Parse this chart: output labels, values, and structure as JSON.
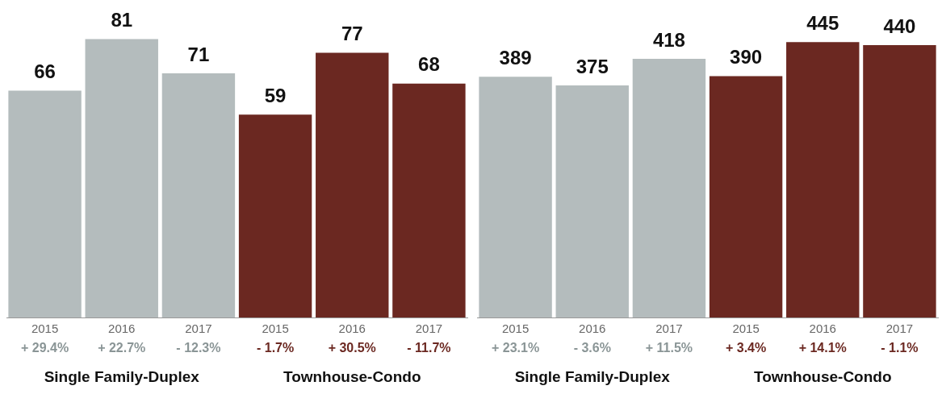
{
  "chart_data": [
    {
      "type": "bar",
      "categories": [
        "2015",
        "2016",
        "2017",
        "2015",
        "2016",
        "2017"
      ],
      "values": [
        66,
        81,
        71,
        59,
        77,
        68
      ],
      "colors": [
        "#b4bcbd",
        "#b4bcbd",
        "#b4bcbd",
        "#6b2821",
        "#6b2821",
        "#6b2821"
      ],
      "annotations": [
        "+ 29.4%",
        "+ 22.7%",
        "- 12.3%",
        "- 1.7%",
        "+ 30.5%",
        "- 11.7%",
        "Single Family-Duplex",
        "Townhouse-Condo"
      ],
      "data_labels": true,
      "legend": false,
      "grid": false,
      "tick_labels": "x"
    },
    {
      "type": "bar",
      "categories": [
        "2015",
        "2016",
        "2017",
        "2015",
        "2016",
        "2017"
      ],
      "values": [
        389,
        375,
        418,
        390,
        445,
        440
      ],
      "colors": [
        "#b4bcbd",
        "#b4bcbd",
        "#b4bcbd",
        "#6b2821",
        "#6b2821",
        "#6b2821"
      ],
      "annotations": [
        "+ 23.1%",
        "- 3.6%",
        "+ 11.5%",
        "+ 3.4%",
        "+ 14.1%",
        "- 1.1%",
        "Single Family-Duplex",
        "Townhouse-Condo"
      ],
      "data_labels": true,
      "legend": false,
      "grid": false,
      "tick_labels": "x"
    }
  ]
}
